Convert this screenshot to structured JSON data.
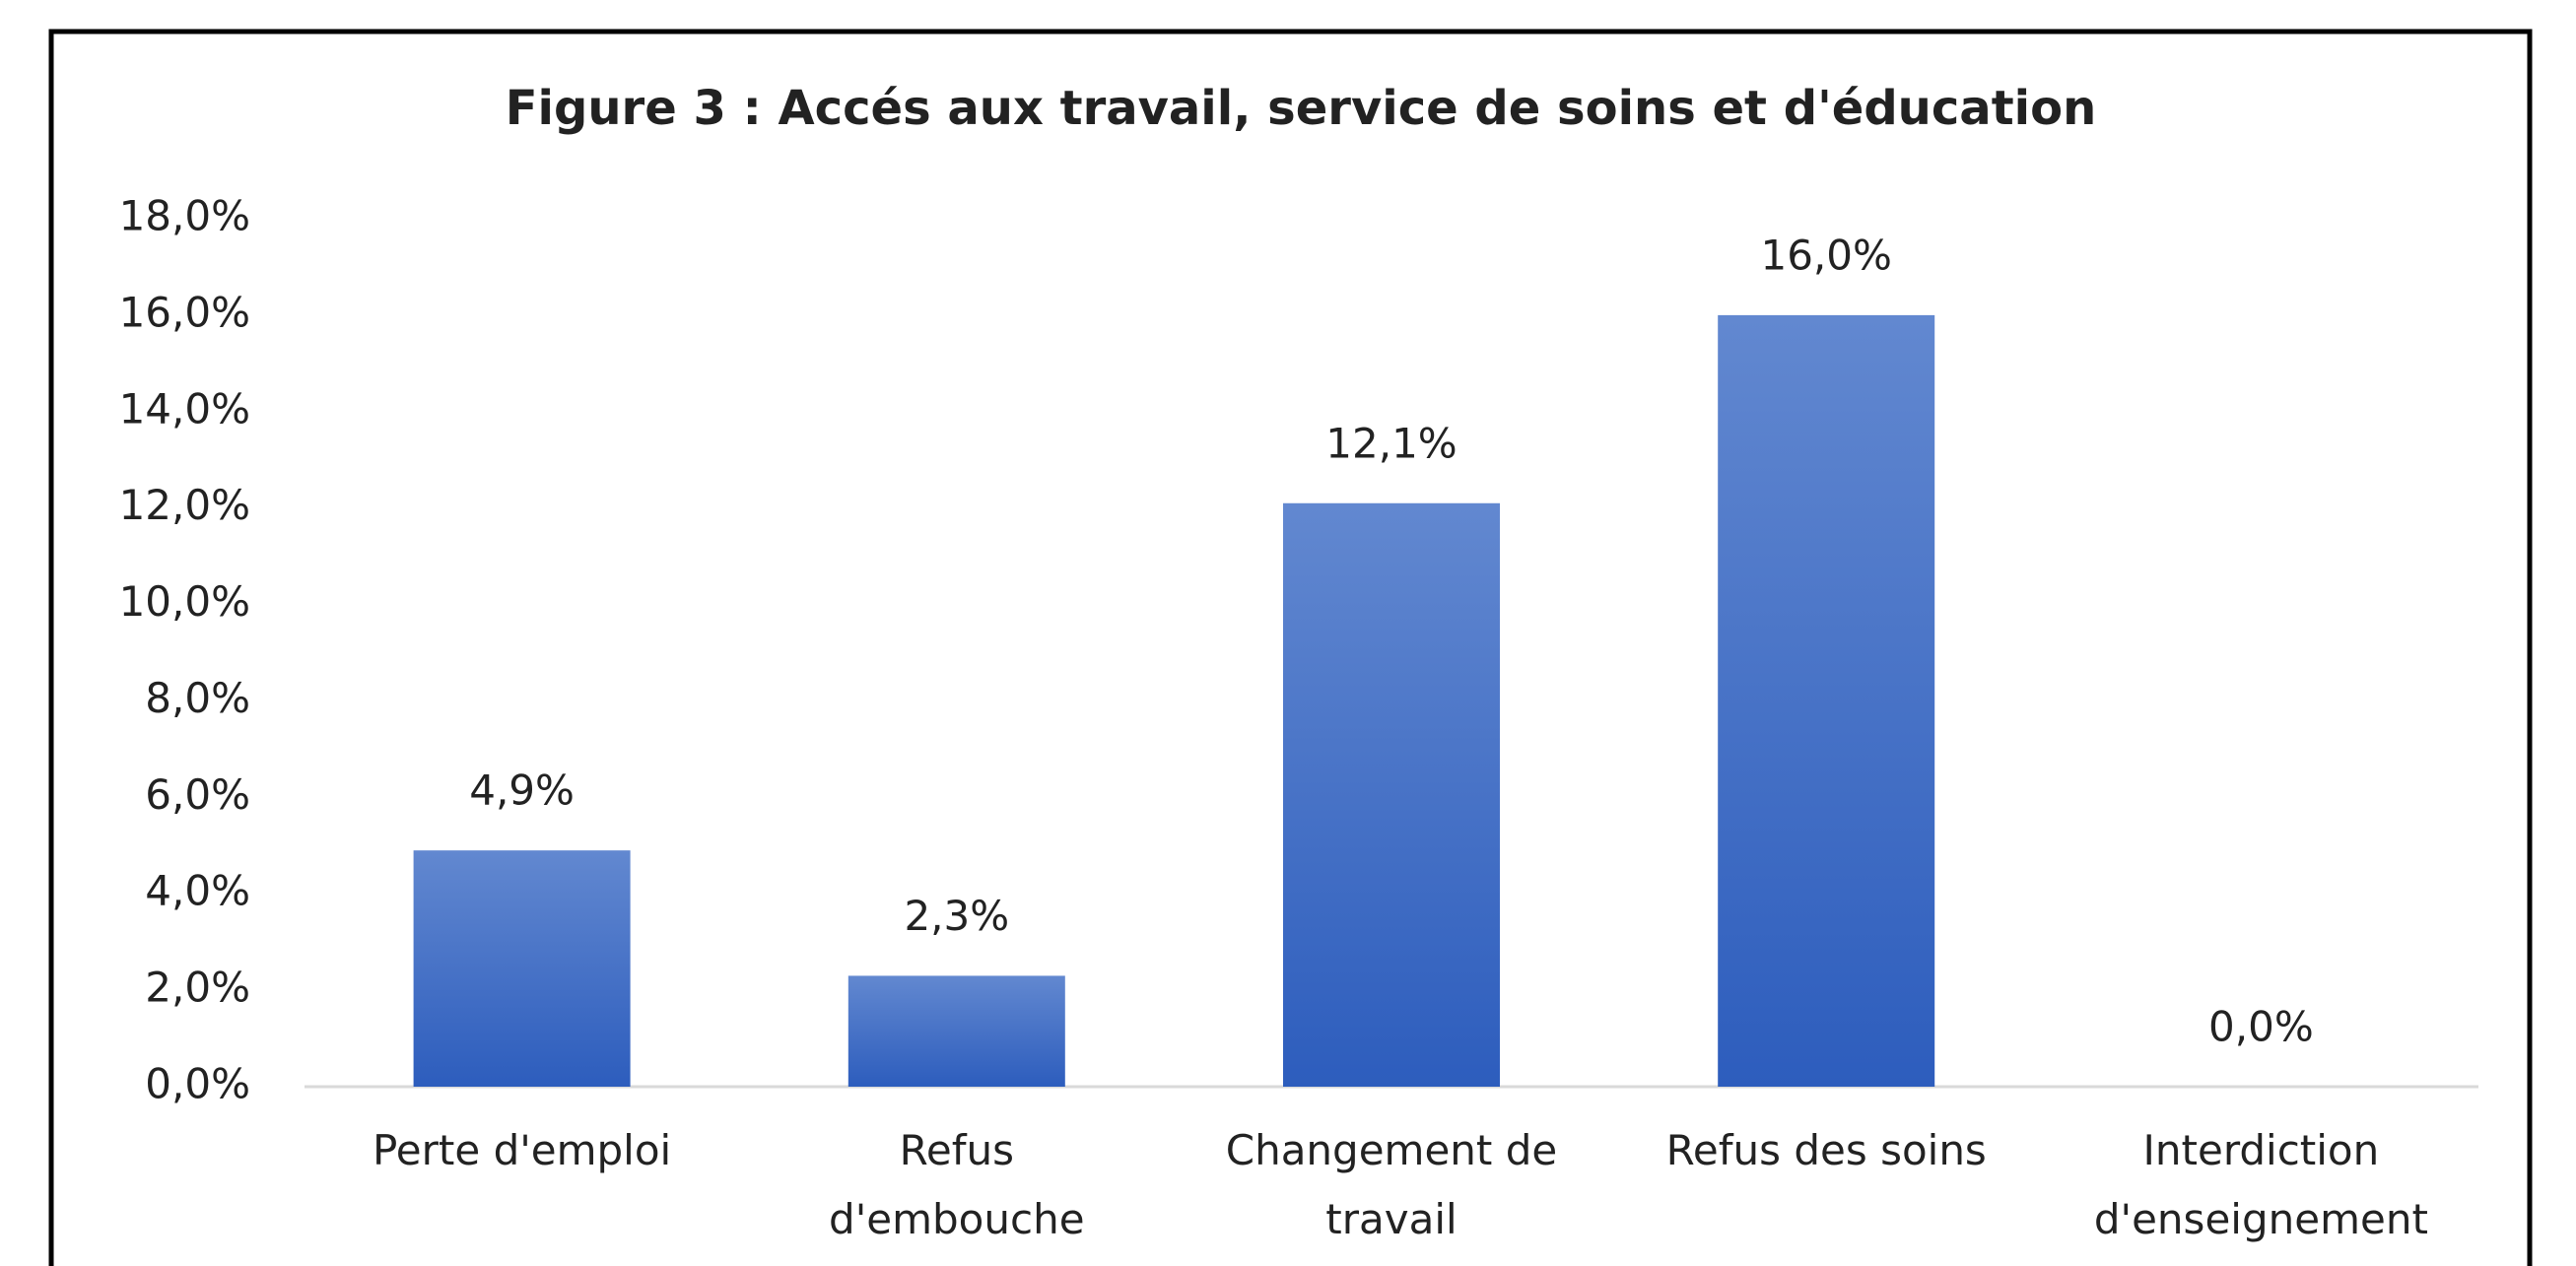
{
  "chart_data": {
    "type": "bar",
    "title": "Figure 3 : Accés aux travail, service de soins et d'éducation",
    "categories": [
      "Perte d'emploi",
      "Refus\nd'embouche",
      "Changement de\ntravail",
      "Refus des soins",
      "Interdiction\nd'enseignement"
    ],
    "values": [
      4.9,
      2.3,
      12.1,
      16.0,
      0.0
    ],
    "value_labels": [
      "4,9%",
      "2,3%",
      "12,1%",
      "16,0%",
      "0,0%"
    ],
    "color": "#4472c4",
    "ylim": [
      0,
      18
    ],
    "yticks": [
      {
        "value": 0,
        "label": "0,0%"
      },
      {
        "value": 2,
        "label": "2,0%"
      },
      {
        "value": 4,
        "label": "4,0%"
      },
      {
        "value": 6,
        "label": "6,0%"
      },
      {
        "value": 8,
        "label": "8,0%"
      },
      {
        "value": 10,
        "label": "10,0%"
      },
      {
        "value": 12,
        "label": "12,0%"
      },
      {
        "value": 14,
        "label": "14,0%"
      },
      {
        "value": 16,
        "label": "16,0%"
      },
      {
        "value": 18,
        "label": "18,0%"
      }
    ],
    "grid": false
  }
}
